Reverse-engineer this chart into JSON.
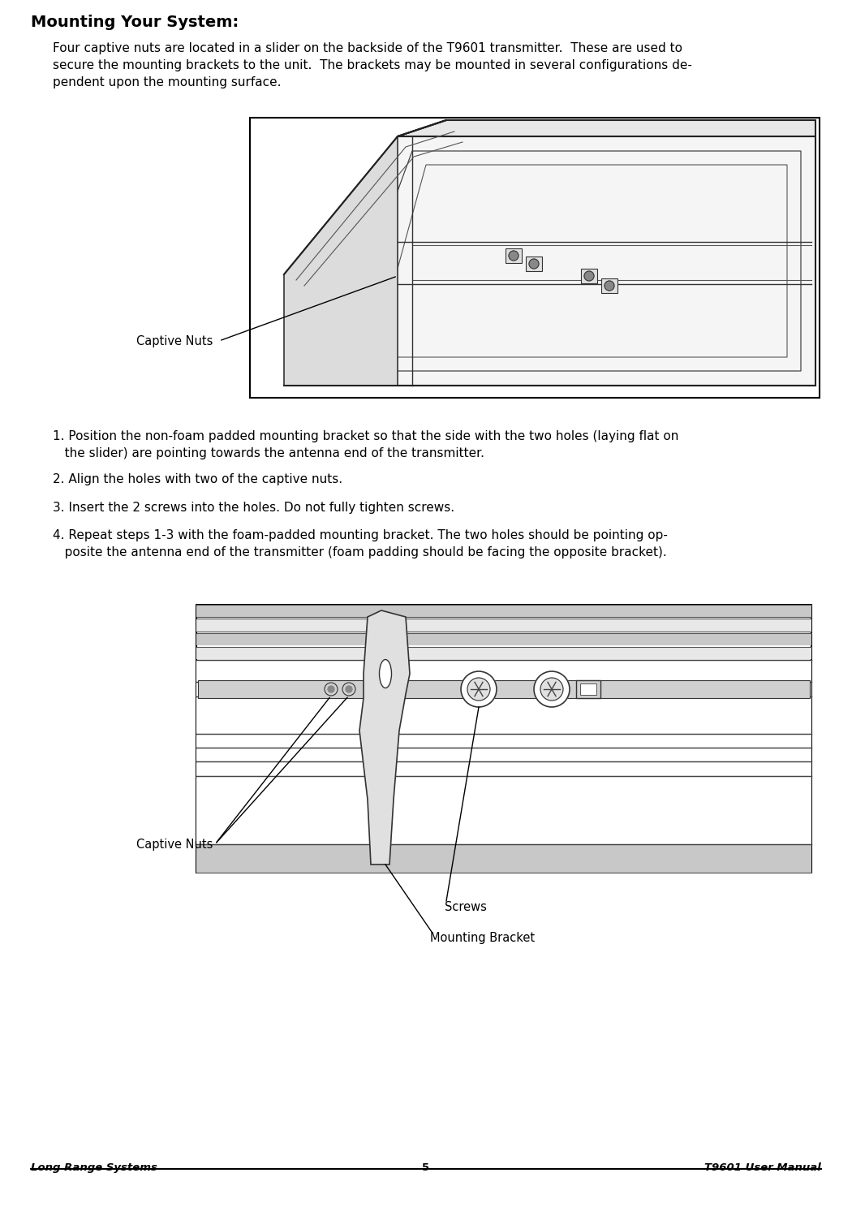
{
  "title": "Mounting Your System:",
  "intro_text": "Four captive nuts are located in a slider on the backside of the T9601 transmitter.  These are used to\nsecure the mounting brackets to the unit.  The brackets may be mounted in several configurations de-\npendent upon the mounting surface.",
  "steps": [
    "1. Position the non-foam padded mounting bracket so that the side with the two holes (laying flat on\n   the slider) are pointing towards the antenna end of the transmitter.",
    "2. Align the holes with two of the captive nuts.",
    "3. Insert the 2 screws into the holes. Do not fully tighten screws.",
    "4. Repeat steps 1-3 with the foam-padded mounting bracket. The two holes should be pointing op-\n   posite the antenna end of the transmitter (foam padding should be facing the opposite bracket)."
  ],
  "footer_left": "Long Range Systems",
  "footer_center": "5",
  "footer_right": "T9601 User Manual",
  "bg_color": "#ffffff",
  "text_color": "#000000",
  "label1": "Captive Nuts",
  "label2_1": "Captive Nuts",
  "label2_2": "Screws",
  "label2_3": "Mounting Bracket"
}
